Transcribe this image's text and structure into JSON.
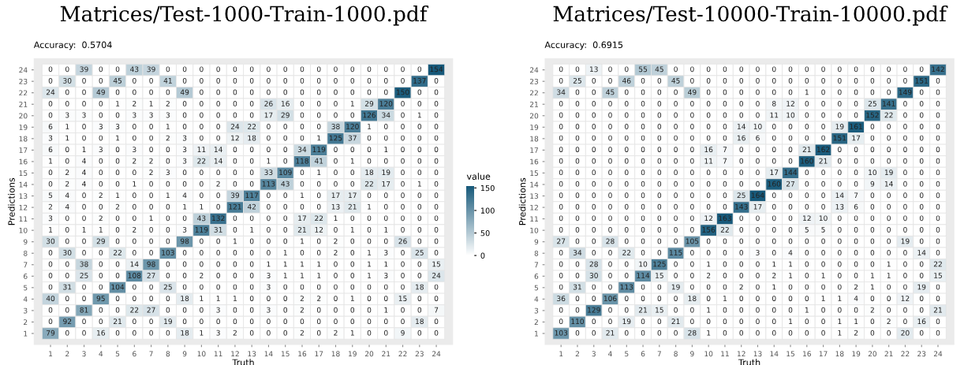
{
  "chart_data": [
    {
      "type": "heatmap",
      "title": "Matrices/Test-1000-Train-1000.pdf",
      "subtitle": "Accuracy:  0.5704",
      "xlabel": "Truth",
      "ylabel": "Predictions",
      "clabel": "value",
      "clim": [
        0,
        154
      ],
      "cticks": [
        0,
        50,
        100,
        150
      ],
      "categories": [
        "1",
        "2",
        "3",
        "4",
        "5",
        "6",
        "7",
        "8",
        "9",
        "10",
        "11",
        "12",
        "13",
        "14",
        "15",
        "16",
        "17",
        "18",
        "19",
        "20",
        "21",
        "22",
        "23",
        "24"
      ],
      "y_categories": [
        "24",
        "23",
        "22",
        "21",
        "20",
        "19",
        "18",
        "17",
        "16",
        "15",
        "14",
        "13",
        "12",
        "11",
        "10",
        "9",
        "8",
        "7",
        "6",
        "5",
        "4",
        "3",
        "2",
        "1"
      ],
      "data_labels": true,
      "cells": [
        [
          0,
          0,
          39,
          0,
          0,
          43,
          39,
          0,
          0,
          0,
          0,
          0,
          0,
          0,
          0,
          0,
          0,
          0,
          0,
          0,
          0,
          0,
          0,
          154
        ],
        [
          0,
          30,
          0,
          0,
          45,
          0,
          0,
          41,
          0,
          0,
          0,
          0,
          0,
          0,
          0,
          0,
          0,
          0,
          0,
          0,
          0,
          0,
          137,
          0
        ],
        [
          24,
          0,
          0,
          49,
          0,
          0,
          0,
          0,
          49,
          0,
          0,
          0,
          0,
          0,
          0,
          0,
          0,
          0,
          0,
          0,
          0,
          150,
          0,
          0
        ],
        [
          0,
          0,
          0,
          0,
          1,
          2,
          1,
          2,
          0,
          0,
          0,
          0,
          0,
          26,
          16,
          0,
          0,
          0,
          1,
          29,
          120,
          0,
          0,
          0
        ],
        [
          0,
          3,
          3,
          0,
          0,
          3,
          3,
          3,
          0,
          0,
          0,
          0,
          0,
          17,
          29,
          0,
          0,
          0,
          0,
          126,
          34,
          0,
          1,
          0
        ],
        [
          6,
          1,
          0,
          3,
          3,
          0,
          0,
          1,
          0,
          0,
          0,
          24,
          22,
          0,
          0,
          0,
          0,
          38,
          120,
          1,
          0,
          0,
          0,
          0
        ],
        [
          3,
          1,
          0,
          0,
          1,
          0,
          0,
          2,
          3,
          0,
          0,
          12,
          18,
          0,
          0,
          0,
          1,
          125,
          37,
          0,
          0,
          0,
          0,
          0
        ],
        [
          6,
          0,
          1,
          3,
          0,
          3,
          0,
          0,
          3,
          11,
          14,
          0,
          0,
          0,
          0,
          34,
          119,
          0,
          0,
          0,
          1,
          0,
          0,
          0
        ],
        [
          1,
          0,
          4,
          0,
          0,
          2,
          2,
          0,
          3,
          22,
          14,
          0,
          0,
          1,
          0,
          118,
          41,
          0,
          1,
          0,
          0,
          0,
          0,
          0
        ],
        [
          0,
          2,
          4,
          0,
          0,
          0,
          2,
          3,
          0,
          0,
          0,
          0,
          0,
          33,
          109,
          0,
          1,
          0,
          0,
          18,
          19,
          0,
          0,
          0
        ],
        [
          0,
          2,
          4,
          0,
          0,
          1,
          0,
          0,
          0,
          0,
          2,
          0,
          0,
          113,
          43,
          0,
          0,
          0,
          0,
          22,
          17,
          0,
          1,
          0
        ],
        [
          5,
          4,
          0,
          2,
          1,
          0,
          0,
          1,
          4,
          0,
          0,
          39,
          117,
          0,
          0,
          1,
          0,
          17,
          17,
          0,
          0,
          0,
          0,
          0
        ],
        [
          2,
          4,
          0,
          0,
          2,
          0,
          0,
          0,
          1,
          1,
          0,
          121,
          42,
          0,
          0,
          0,
          0,
          13,
          21,
          1,
          0,
          0,
          0,
          0
        ],
        [
          3,
          0,
          0,
          2,
          0,
          0,
          1,
          0,
          0,
          43,
          132,
          0,
          0,
          0,
          0,
          17,
          22,
          1,
          0,
          0,
          0,
          0,
          0,
          0
        ],
        [
          1,
          0,
          1,
          1,
          0,
          2,
          0,
          0,
          3,
          119,
          31,
          0,
          1,
          0,
          0,
          21,
          12,
          0,
          1,
          0,
          1,
          0,
          0,
          0
        ],
        [
          30,
          0,
          0,
          29,
          0,
          0,
          0,
          0,
          98,
          0,
          0,
          1,
          0,
          0,
          0,
          1,
          0,
          2,
          0,
          0,
          0,
          26,
          0,
          0
        ],
        [
          0,
          30,
          0,
          0,
          22,
          0,
          0,
          103,
          0,
          0,
          0,
          0,
          0,
          0,
          1,
          0,
          0,
          2,
          0,
          1,
          3,
          0,
          25,
          0
        ],
        [
          0,
          0,
          38,
          0,
          0,
          14,
          98,
          0,
          0,
          0,
          0,
          0,
          0,
          1,
          1,
          1,
          1,
          0,
          0,
          1,
          1,
          0,
          0,
          15
        ],
        [
          0,
          0,
          25,
          0,
          0,
          108,
          27,
          0,
          0,
          2,
          0,
          0,
          0,
          3,
          1,
          1,
          1,
          0,
          0,
          1,
          3,
          0,
          0,
          24
        ],
        [
          0,
          31,
          0,
          0,
          104,
          0,
          0,
          25,
          0,
          0,
          0,
          0,
          0,
          3,
          0,
          0,
          0,
          0,
          0,
          0,
          0,
          0,
          18,
          0
        ],
        [
          40,
          0,
          0,
          95,
          0,
          0,
          0,
          0,
          18,
          1,
          1,
          1,
          0,
          0,
          0,
          2,
          2,
          0,
          1,
          0,
          0,
          15,
          0,
          0
        ],
        [
          0,
          0,
          81,
          0,
          0,
          22,
          27,
          0,
          0,
          0,
          3,
          0,
          0,
          3,
          0,
          2,
          0,
          0,
          0,
          0,
          1,
          0,
          0,
          7
        ],
        [
          0,
          92,
          0,
          0,
          21,
          0,
          0,
          19,
          0,
          0,
          0,
          0,
          0,
          0,
          0,
          0,
          0,
          0,
          0,
          0,
          0,
          0,
          18,
          0
        ],
        [
          79,
          0,
          0,
          16,
          0,
          0,
          0,
          0,
          18,
          1,
          3,
          2,
          0,
          0,
          0,
          2,
          0,
          2,
          1,
          0,
          0,
          9,
          0,
          0
        ]
      ]
    },
    {
      "type": "heatmap",
      "title": "Matrices/Test-10000-Train-10000.pdf",
      "subtitle": "Accuracy:  0.6915",
      "xlabel": "Truth",
      "ylabel": "Predictions",
      "categories": [
        "1",
        "2",
        "3",
        "4",
        "5",
        "6",
        "7",
        "8",
        "9",
        "10",
        "11",
        "12",
        "13",
        "14",
        "15",
        "16",
        "17",
        "18",
        "19",
        "20",
        "21",
        "22",
        "23",
        "24"
      ],
      "y_categories": [
        "24",
        "23",
        "22",
        "21",
        "20",
        "19",
        "18",
        "17",
        "16",
        "15",
        "14",
        "13",
        "12",
        "11",
        "10",
        "9",
        "8",
        "7",
        "6",
        "5",
        "4",
        "3",
        "2",
        "1"
      ],
      "data_labels": true,
      "cells": [
        [
          0,
          0,
          13,
          0,
          0,
          55,
          45,
          0,
          0,
          0,
          0,
          0,
          0,
          0,
          0,
          0,
          0,
          0,
          0,
          0,
          0,
          0,
          0,
          142
        ],
        [
          0,
          25,
          0,
          0,
          46,
          0,
          0,
          45,
          0,
          0,
          0,
          0,
          0,
          0,
          0,
          0,
          0,
          0,
          0,
          0,
          0,
          0,
          151,
          0
        ],
        [
          34,
          0,
          0,
          45,
          0,
          0,
          0,
          0,
          49,
          0,
          0,
          0,
          0,
          0,
          0,
          1,
          0,
          0,
          0,
          0,
          0,
          149,
          0,
          0
        ],
        [
          0,
          0,
          0,
          0,
          0,
          0,
          0,
          0,
          0,
          0,
          0,
          0,
          0,
          8,
          12,
          0,
          0,
          0,
          0,
          25,
          141,
          0,
          0,
          0
        ],
        [
          0,
          0,
          0,
          0,
          0,
          0,
          0,
          0,
          0,
          0,
          0,
          0,
          0,
          11,
          10,
          0,
          0,
          0,
          0,
          152,
          22,
          0,
          0,
          0
        ],
        [
          0,
          0,
          0,
          0,
          0,
          0,
          0,
          0,
          0,
          0,
          0,
          14,
          10,
          0,
          0,
          0,
          0,
          19,
          161,
          0,
          0,
          0,
          0,
          0
        ],
        [
          0,
          0,
          0,
          0,
          0,
          0,
          0,
          0,
          0,
          0,
          0,
          16,
          6,
          0,
          0,
          0,
          0,
          151,
          17,
          0,
          0,
          0,
          0,
          0
        ],
        [
          0,
          0,
          0,
          0,
          0,
          0,
          0,
          0,
          0,
          16,
          7,
          0,
          0,
          0,
          0,
          21,
          162,
          0,
          0,
          0,
          0,
          0,
          0,
          0
        ],
        [
          0,
          0,
          0,
          0,
          0,
          0,
          0,
          0,
          0,
          11,
          7,
          0,
          0,
          0,
          0,
          160,
          21,
          0,
          0,
          0,
          0,
          0,
          0,
          0
        ],
        [
          0,
          0,
          0,
          0,
          0,
          0,
          0,
          0,
          0,
          0,
          0,
          0,
          0,
          17,
          144,
          0,
          0,
          0,
          0,
          10,
          19,
          0,
          0,
          0
        ],
        [
          0,
          0,
          0,
          0,
          0,
          0,
          0,
          0,
          0,
          0,
          0,
          0,
          0,
          160,
          27,
          0,
          0,
          0,
          0,
          9,
          14,
          0,
          0,
          0
        ],
        [
          0,
          0,
          0,
          0,
          0,
          0,
          0,
          0,
          0,
          0,
          0,
          25,
          164,
          0,
          0,
          0,
          0,
          14,
          7,
          0,
          0,
          0,
          0,
          0
        ],
        [
          0,
          0,
          0,
          0,
          0,
          0,
          0,
          0,
          0,
          0,
          0,
          143,
          17,
          0,
          0,
          0,
          0,
          13,
          6,
          0,
          0,
          0,
          0,
          0
        ],
        [
          0,
          0,
          0,
          0,
          0,
          0,
          0,
          0,
          0,
          12,
          163,
          0,
          0,
          0,
          0,
          12,
          10,
          0,
          0,
          0,
          0,
          0,
          0,
          0
        ],
        [
          0,
          0,
          0,
          0,
          0,
          0,
          0,
          0,
          0,
          156,
          22,
          0,
          0,
          0,
          0,
          5,
          5,
          0,
          0,
          0,
          0,
          0,
          0,
          0
        ],
        [
          27,
          0,
          0,
          28,
          0,
          0,
          0,
          0,
          105,
          0,
          0,
          0,
          0,
          0,
          0,
          0,
          0,
          0,
          0,
          0,
          0,
          19,
          0,
          0
        ],
        [
          0,
          34,
          0,
          0,
          22,
          0,
          0,
          115,
          0,
          0,
          0,
          0,
          3,
          0,
          4,
          0,
          0,
          0,
          0,
          0,
          0,
          0,
          14,
          0
        ],
        [
          0,
          0,
          28,
          0,
          0,
          10,
          125,
          0,
          0,
          1,
          0,
          0,
          0,
          1,
          1,
          0,
          0,
          0,
          0,
          0,
          1,
          0,
          0,
          22
        ],
        [
          0,
          0,
          30,
          0,
          0,
          114,
          15,
          0,
          0,
          2,
          0,
          0,
          0,
          2,
          1,
          0,
          1,
          0,
          0,
          1,
          1,
          0,
          0,
          15
        ],
        [
          0,
          31,
          0,
          0,
          113,
          0,
          0,
          19,
          0,
          0,
          0,
          2,
          0,
          1,
          0,
          0,
          0,
          0,
          2,
          1,
          0,
          0,
          19,
          0
        ],
        [
          36,
          0,
          0,
          106,
          0,
          0,
          0,
          0,
          18,
          0,
          1,
          0,
          0,
          0,
          0,
          0,
          1,
          1,
          4,
          0,
          0,
          12,
          0,
          0
        ],
        [
          0,
          0,
          129,
          0,
          0,
          21,
          15,
          0,
          0,
          1,
          0,
          0,
          0,
          0,
          0,
          1,
          0,
          0,
          0,
          2,
          0,
          0,
          0,
          21
        ],
        [
          0,
          110,
          0,
          0,
          19,
          0,
          0,
          21,
          0,
          0,
          0,
          0,
          0,
          0,
          1,
          0,
          0,
          1,
          1,
          0,
          2,
          0,
          16,
          0
        ],
        [
          103,
          0,
          0,
          21,
          0,
          0,
          0,
          0,
          28,
          1,
          0,
          0,
          0,
          0,
          0,
          0,
          0,
          1,
          2,
          0,
          0,
          20,
          0,
          0
        ]
      ]
    }
  ]
}
